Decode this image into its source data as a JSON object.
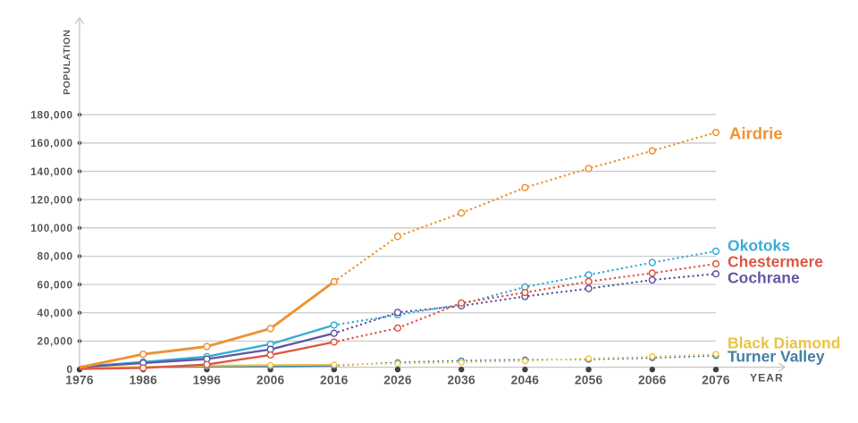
{
  "chart_data": {
    "type": "line",
    "title": "",
    "xlabel": "YEAR",
    "ylabel": "POPULATION",
    "x": [
      1976,
      1986,
      1996,
      2006,
      2016,
      2026,
      2036,
      2046,
      2056,
      2066,
      2076
    ],
    "x_tick_labels": [
      "1976",
      "1986",
      "1996",
      "2006",
      "2016",
      "2026",
      "2036",
      "2046",
      "2056",
      "2066",
      "2076"
    ],
    "y_ticks": [
      0,
      20000,
      40000,
      60000,
      80000,
      100000,
      120000,
      140000,
      160000,
      180000
    ],
    "y_tick_labels": [
      "0",
      "20,000",
      "40,000",
      "60,000",
      "80,000",
      "100,000",
      "120,000",
      "140,000",
      "160,000",
      "180,000"
    ],
    "ylim": [
      0,
      180000
    ],
    "xlim": [
      1976,
      2076
    ],
    "grid": "horizontal",
    "legend_position": "end-of-line",
    "solid_until_x": 2016,
    "line_style_note": "solid lines are historical (1976-2016), dotted lines are projections (2016-2076)",
    "series": [
      {
        "name": "Airdrie",
        "color": "#EE9334",
        "values": [
          1400,
          10700,
          16100,
          28800,
          62000,
          94000,
          110500,
          128500,
          142000,
          154500,
          167500
        ]
      },
      {
        "name": "Okotoks",
        "color": "#39ADD8",
        "values": [
          1800,
          5200,
          9000,
          17800,
          31300,
          38500,
          46000,
          58200,
          66800,
          75500,
          83500
        ]
      },
      {
        "name": "Chestermere",
        "color": "#DC5846",
        "values": [
          300,
          1000,
          3400,
          10200,
          19300,
          29200,
          46900,
          54300,
          62100,
          68000,
          74600
        ]
      },
      {
        "name": "Cochrane",
        "color": "#615AA5",
        "values": [
          1600,
          4500,
          7300,
          14100,
          25500,
          40200,
          44900,
          51500,
          57100,
          63200,
          67500
        ]
      },
      {
        "name": "Black Diamond",
        "color": "#E9C44A",
        "values": [
          1300,
          1700,
          2600,
          3000,
          3300,
          4100,
          4900,
          5900,
          7700,
          9000,
          10800
        ]
      },
      {
        "name": "Turner Valley",
        "color": "#4580A6",
        "values": [
          1000,
          1400,
          1900,
          2100,
          2600,
          4900,
          6200,
          6900,
          6900,
          8000,
          9600
        ]
      }
    ],
    "axis_color": "#C7C8CA",
    "grid_color": "#CBCCCE",
    "tick_dot_color": "#414042",
    "text_color": "#58595B"
  }
}
